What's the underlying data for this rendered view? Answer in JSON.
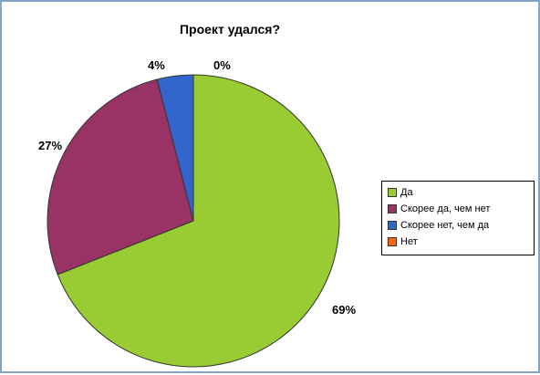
{
  "chart_data": {
    "type": "pie",
    "title": "Проект удался?",
    "categories": [
      "Да",
      "Скорее да, чем нет",
      "Скорее нет, чем да",
      "Нет"
    ],
    "values": [
      69,
      27,
      4,
      0
    ],
    "labels": [
      "69%",
      "27%",
      "4%",
      "0%"
    ],
    "colors": [
      "#99cc33",
      "#993366",
      "#3366cc",
      "#ff6600"
    ],
    "legend_position": "right"
  }
}
